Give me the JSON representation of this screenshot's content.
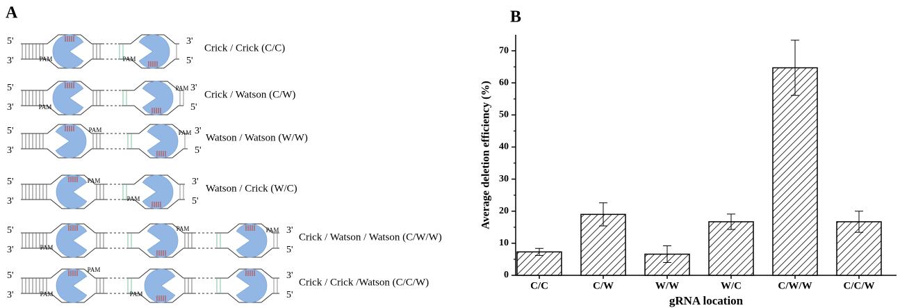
{
  "panel_a": {
    "label": "A",
    "rows": [
      {
        "label": "Crick / Crick (C/C)",
        "ends": [
          "5'",
          "3'",
          "3'",
          "5'"
        ],
        "pam": [
          "PAM",
          "PAM"
        ]
      },
      {
        "label": "Crick / Watson (C/W)",
        "ends": [
          "5'",
          "3'",
          "3'",
          "5'"
        ],
        "pam": [
          "PAM",
          "PAM"
        ]
      },
      {
        "label": "Watson / Watson (W/W)",
        "ends": [
          "5'",
          "3'",
          "3'",
          "5'"
        ],
        "pam": [
          "PAM",
          "PAM"
        ]
      },
      {
        "label": "Watson / Crick (W/C)",
        "ends": [
          "5'",
          "3'",
          "3'",
          "5'"
        ],
        "pam": [
          "PAM",
          "PAM"
        ]
      },
      {
        "label": "Crick / Watson / Watson (C/W/W)",
        "ends": [
          "5'",
          "3'",
          "3'",
          "5'"
        ],
        "pam": [
          "PAM",
          "PAM",
          "PAM"
        ]
      },
      {
        "label": "Crick / Crick /Watson (C/C/W)",
        "ends": [
          "5'",
          "3'",
          "3'",
          "5'"
        ],
        "pam": [
          "PAM",
          "PAM",
          "PAM"
        ]
      }
    ]
  },
  "chart_data": {
    "type": "bar",
    "panel_label": "B",
    "x_label": "gRNA location",
    "y_label": "Average deletion efficiency (%)",
    "categories": [
      "C/C",
      "C/W",
      "W/W",
      "W/C",
      "C/W/W",
      "C/C/W"
    ],
    "values": [
      7.3,
      19,
      6.6,
      16.7,
      64.7,
      16.7
    ],
    "errors": [
      1.1,
      3.6,
      2.6,
      2.4,
      8.6,
      3.3
    ],
    "ylim": [
      0,
      75
    ],
    "yticks": [
      0,
      10,
      20,
      30,
      40,
      50,
      60,
      70
    ],
    "yminorticks": [
      5,
      15,
      25,
      35,
      45,
      55,
      65
    ],
    "color": "#000000"
  }
}
